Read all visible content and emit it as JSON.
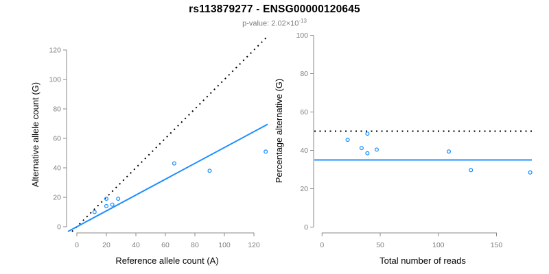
{
  "header": {
    "title": "rs113879277 - ENSG00000120645",
    "pvalue_label": "p-value: ",
    "pvalue_mantissa": "2.02×10",
    "pvalue_exponent": "-13"
  },
  "colors": {
    "accent_blue": "#1E90FF",
    "dotted_line": "#000000",
    "axis_line": "#8A8A8A",
    "tick_label": "#7D7D7D",
    "axis_title": "#000000",
    "subtitle_gray": "#7D7D7D",
    "background": "#FFFFFF"
  },
  "chart_data": [
    {
      "name": "allele-count-scatter",
      "type": "scatter",
      "xlabel": "Reference allele count (A)",
      "ylabel": "Alternative allele count (G)",
      "xlim": [
        0,
        130
      ],
      "ylim": [
        0,
        128
      ],
      "xticks": [
        0,
        20,
        40,
        60,
        80,
        100,
        120
      ],
      "yticks": [
        0,
        20,
        40,
        60,
        80,
        100,
        120
      ],
      "grid": false,
      "legend": false,
      "point_style": "open-circle",
      "points": [
        [
          12,
          10
        ],
        [
          20,
          14
        ],
        [
          20,
          19
        ],
        [
          24,
          15
        ],
        [
          28,
          19
        ],
        [
          66,
          43
        ],
        [
          90,
          38
        ],
        [
          128,
          51
        ]
      ],
      "lines": [
        {
          "name": "identity-line",
          "type": "abline",
          "slope": 1,
          "intercept": 0,
          "style": "dotted",
          "color": "dotted_line"
        },
        {
          "name": "allelic-ratio-line",
          "type": "abline",
          "slope": 0.538,
          "intercept": 0,
          "style": "solid",
          "color": "accent_blue"
        }
      ]
    },
    {
      "name": "percentage-scatter",
      "type": "scatter",
      "xlabel": "Total number of reads",
      "ylabel": "Percentage alternative (G)",
      "xlim": [
        0,
        188
      ],
      "ylim": [
        0,
        103
      ],
      "xticks": [
        0,
        50,
        100,
        150
      ],
      "yticks": [
        0,
        20,
        40,
        60,
        80,
        100
      ],
      "grid": false,
      "legend": false,
      "point_style": "open-circle",
      "points": [
        [
          22,
          45.5
        ],
        [
          34,
          41.2
        ],
        [
          39,
          48.7
        ],
        [
          39,
          38.5
        ],
        [
          47,
          40.4
        ],
        [
          109,
          39.4
        ],
        [
          128,
          29.7
        ],
        [
          179,
          28.5
        ]
      ],
      "lines": [
        {
          "name": "fifty-percent-line",
          "type": "hline",
          "y": 50,
          "style": "dotted",
          "color": "dotted_line"
        },
        {
          "name": "mean-percentage-line",
          "type": "hline",
          "y": 35,
          "style": "solid",
          "color": "accent_blue"
        }
      ]
    }
  ]
}
